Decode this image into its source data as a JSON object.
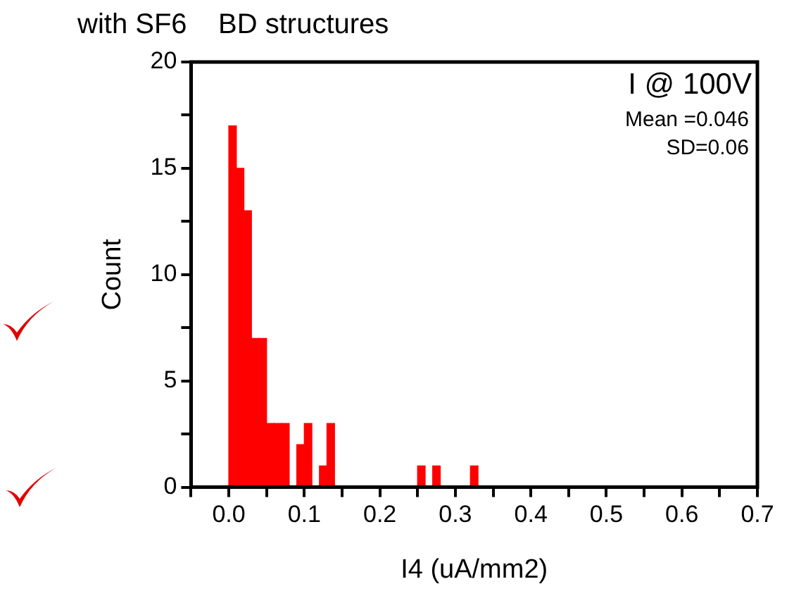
{
  "chart_data": {
    "type": "histogram",
    "title": "with SF6    BD structures",
    "xlabel": "I4 (uA/mm2)",
    "ylabel": "Count",
    "annotations": [
      "I @ 100V",
      "Mean =0.046",
      "SD=0.06"
    ],
    "bins": [
      0,
      0.01,
      0.02,
      0.03,
      0.04,
      0.05,
      0.06,
      0.07,
      0.08,
      0.09,
      0.1,
      0.11,
      0.12,
      0.13,
      0.14,
      0.15,
      0.16,
      0.17,
      0.18,
      0.19,
      0.2,
      0.21,
      0.22,
      0.23,
      0.24,
      0.25,
      0.26,
      0.27,
      0.28,
      0.29,
      0.3,
      0.31,
      0.32,
      0.33
    ],
    "values": [
      17,
      15,
      13,
      7,
      7,
      3,
      3,
      3,
      0,
      2,
      3,
      0,
      1,
      3,
      0,
      0,
      0,
      0,
      0,
      0,
      0,
      0,
      0,
      0,
      0,
      1,
      0,
      1,
      0,
      0,
      0,
      0,
      1
    ],
    "color": "#ff0000",
    "xlim": [
      -0.05,
      0.7
    ],
    "xticks": [
      {
        "value": -0.05,
        "label": null
      },
      {
        "value": 0,
        "label": "0.0"
      },
      {
        "value": 0.05,
        "label": null
      },
      {
        "value": 0.1,
        "label": "0.1"
      },
      {
        "value": 0.15,
        "label": null
      },
      {
        "value": 0.2,
        "label": "0.2"
      },
      {
        "value": 0.25,
        "label": null
      },
      {
        "value": 0.3,
        "label": "0.3"
      },
      {
        "value": 0.35,
        "label": null
      },
      {
        "value": 0.4,
        "label": "0.4"
      },
      {
        "value": 0.45,
        "label": null
      },
      {
        "value": 0.5,
        "label": "0.5"
      },
      {
        "value": 0.55,
        "label": null
      },
      {
        "value": 0.6,
        "label": "0.6"
      },
      {
        "value": 0.65,
        "label": null
      },
      {
        "value": 0.7,
        "label": "0.7"
      }
    ],
    "ylim": [
      0,
      20
    ],
    "yticks": [
      0,
      {
        "value": 2.5,
        "label": null
      },
      5,
      {
        "value": 7.5,
        "label": null
      },
      10,
      {
        "value": 12.5,
        "label": null
      },
      15,
      {
        "value": 17.5,
        "label": null
      },
      20
    ],
    "grid": false,
    "legend": false
  }
}
